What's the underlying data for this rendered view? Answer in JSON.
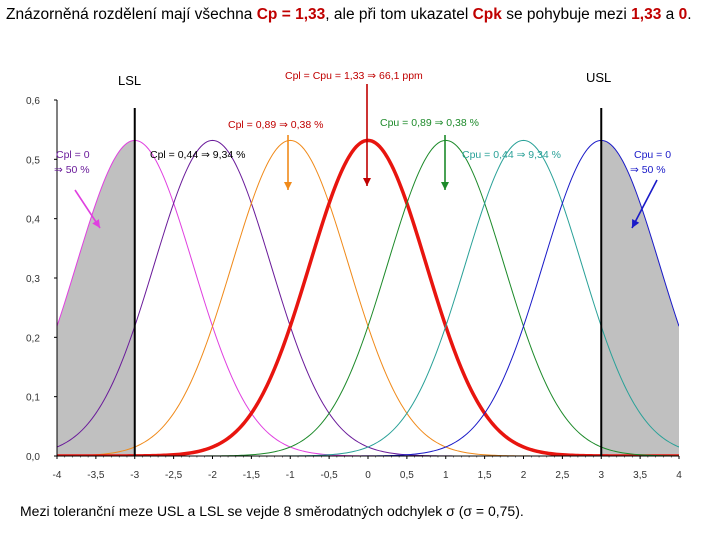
{
  "title": {
    "part1": "Znázorněná rozdělení mají všechna",
    "cp_label": "Cp",
    "eq": "=",
    "cp_value": "1,33",
    "part2": ", ale při tom ukazatel",
    "cpk_label": "Cpk",
    "part3": "se pohybuje mezi",
    "range_low": "1,33",
    "conj": "a",
    "range_high": "0",
    "end": "."
  },
  "caption": "Mezi toleranční meze USL a LSL se vejde 8 směrodatných odchylek σ (σ = 0,75).",
  "limits": {
    "lsl_label": "LSL",
    "usl_label": "USL"
  },
  "colors": {
    "red": "#e8150f",
    "orange": "#f08a1a",
    "green": "#1d8a2a",
    "teal": "#2aa198",
    "magenta": "#e040e0",
    "purple": "#6a1b9a",
    "blue": "#1a1ac8",
    "shade": "#c0c0c0"
  },
  "annotations": [
    {
      "id": "center",
      "text": "Cpl = Cpu = 1,33  ⇒  66,1 ppm",
      "color": "#c00000",
      "arrow_color": "#c00000"
    },
    {
      "id": "cpl089",
      "text": "Cpl = 0,89  ⇒  0,38 %",
      "color": "#c00000",
      "arrow_color": "#f08a1a"
    },
    {
      "id": "cpu089",
      "text": "Cpu = 0,89  ⇒  0,38 %",
      "color": "#1d8a2a",
      "arrow_color": "#1d8a2a"
    },
    {
      "id": "cpl044",
      "text": "Cpl = 0,44  ⇒  9,34 %",
      "color": "#000000"
    },
    {
      "id": "cpu044",
      "text": "Cpu = 0,44  ⇒  9,34 %",
      "color": "#2aa198"
    },
    {
      "id": "cpl0a",
      "text": "Cpl = 0",
      "color": "#6a1b9a",
      "arrow_color": "#e040e0"
    },
    {
      "id": "cpl0b",
      "text": "⇒  50 %",
      "color": "#6a1b9a"
    },
    {
      "id": "cpu0a",
      "text": "Cpu = 0",
      "color": "#1a1ac8",
      "arrow_color": "#1a1ac8"
    },
    {
      "id": "cpu0b",
      "text": "⇒  50 %",
      "color": "#1a1ac8"
    }
  ],
  "chart_data": {
    "type": "line",
    "title": "",
    "xlabel": "",
    "ylabel": "",
    "xlim": [
      -4,
      4
    ],
    "ylim": [
      0,
      0.6
    ],
    "x_ticks": [
      -4,
      -3.5,
      -3,
      -2.5,
      -2,
      -1.5,
      -1,
      -0.5,
      0,
      0.5,
      1,
      1.5,
      2,
      2.5,
      3,
      3.5,
      4
    ],
    "x_tick_labels": [
      "-4",
      "-3,5",
      "-3",
      "-2,5",
      "-2",
      "-1,5",
      "-1",
      "-0,5",
      "0",
      "0,5",
      "1",
      "1,5",
      "2",
      "2,5",
      "3",
      "3,5",
      "4"
    ],
    "y_ticks": [
      0,
      0.1,
      0.2,
      0.3,
      0.4,
      0.5,
      0.6
    ],
    "y_tick_labels": [
      "0,0",
      "0,1",
      "0,2",
      "0,3",
      "0,4",
      "0,5",
      "0,6"
    ],
    "lsl": -3,
    "usl": 3,
    "sigma": 0.75,
    "series": [
      {
        "name": "mean -3 (Cpl = 0)",
        "mean": -3,
        "sd": 0.75,
        "color": "#e040e0",
        "width": 1
      },
      {
        "name": "mean -2 (Cpl = 0,44)",
        "mean": -2,
        "sd": 0.75,
        "color": "#6a1b9a",
        "width": 1
      },
      {
        "name": "mean -1 (Cpl = 0,89)",
        "mean": -1,
        "sd": 0.75,
        "color": "#f08a1a",
        "width": 1
      },
      {
        "name": "mean 0 (Cpl = Cpu = 1,33)",
        "mean": 0,
        "sd": 0.75,
        "color": "#e8150f",
        "width": 3.5
      },
      {
        "name": "mean 1 (Cpu = 0,89)",
        "mean": 1,
        "sd": 0.75,
        "color": "#1d8a2a",
        "width": 1
      },
      {
        "name": "mean 2 (Cpu = 0,44)",
        "mean": 2,
        "sd": 0.75,
        "color": "#2aa198",
        "width": 1
      },
      {
        "name": "mean 3 (Cpu = 0)",
        "mean": 3,
        "sd": 0.75,
        "color": "#1a1ac8",
        "width": 1
      }
    ],
    "shaded": [
      {
        "name": "tail below LSL",
        "from": -4,
        "to": -3,
        "mean": -3
      },
      {
        "name": "tail above USL",
        "from": 3,
        "to": 4,
        "mean": 3
      }
    ]
  }
}
